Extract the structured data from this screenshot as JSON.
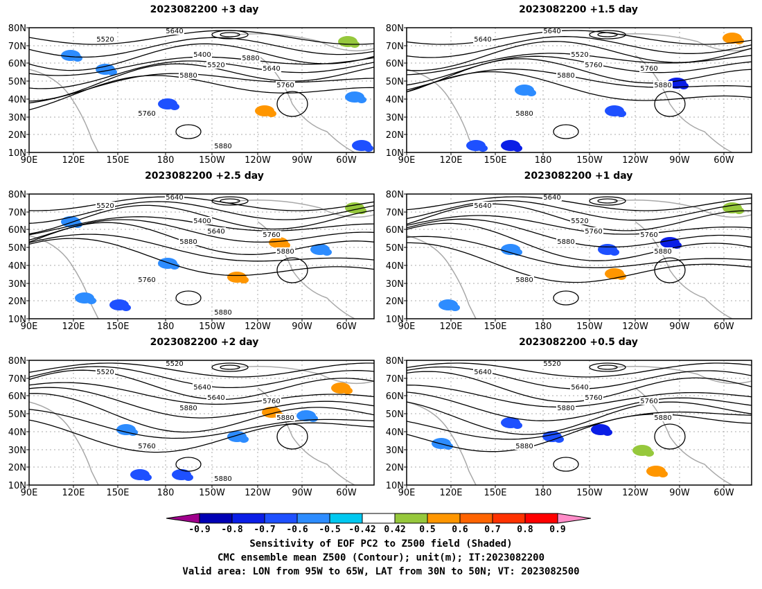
{
  "panels": [
    {
      "title": "2023082200 +3 day",
      "contour_labels": [
        "5520",
        "5640",
        "5400",
        "5520",
        "5640",
        "5760",
        "5760",
        "5880",
        "5880",
        "5880"
      ]
    },
    {
      "title": "2023082200 +1.5 day",
      "contour_labels": [
        "5640",
        "5640",
        "5520",
        "5760",
        "5760",
        "5880",
        "5880",
        "5880"
      ]
    },
    {
      "title": "2023082200 +2.5 day",
      "contour_labels": [
        "5520",
        "5640",
        "5400",
        "5640",
        "5760",
        "5880",
        "5760",
        "5880",
        "5880"
      ]
    },
    {
      "title": "2023082200 +1 day",
      "contour_labels": [
        "5640",
        "5640",
        "5520",
        "5760",
        "5760",
        "5880",
        "5880",
        "5880"
      ]
    },
    {
      "title": "2023082200 +2 day",
      "contour_labels": [
        "5520",
        "5520",
        "5640",
        "5640",
        "5760",
        "5880",
        "5760",
        "5880",
        "5880"
      ]
    },
    {
      "title": "2023082200 +0.5 day",
      "contour_labels": [
        "5640",
        "5520",
        "5640",
        "5760",
        "5760",
        "5880",
        "5880",
        "5880"
      ]
    }
  ],
  "axes": {
    "lon_labels": [
      "90E",
      "120E",
      "150E",
      "180",
      "150W",
      "120W",
      "90W",
      "60W"
    ],
    "lat_labels": [
      "80N",
      "70N",
      "60N",
      "50N",
      "40N",
      "30N",
      "20N",
      "10N"
    ]
  },
  "colorbar": {
    "labels": [
      "-0.9",
      "-0.8",
      "-0.7",
      "-0.6",
      "-0.5",
      "-0.42",
      "0.42",
      "0.5",
      "0.6",
      "0.7",
      "0.8",
      "0.9"
    ],
    "colors": [
      "#a0008c",
      "#0000b4",
      "#0a1ee6",
      "#1e50ff",
      "#2d8cff",
      "#00c8f0",
      "#ffffff",
      "#96c83c",
      "#ff9600",
      "#ff6400",
      "#ff3200",
      "#ff0000",
      "#ff8cc8"
    ]
  },
  "captions": [
    "Sensitivity of EOF PC2 to Z500 field (Shaded)",
    "CMC ensemble mean Z500 (Contour); unit(m); IT:2023082200",
    "Valid area: LON from 95W to 65W, LAT from 30N to 50N; VT: 2023082500"
  ]
}
